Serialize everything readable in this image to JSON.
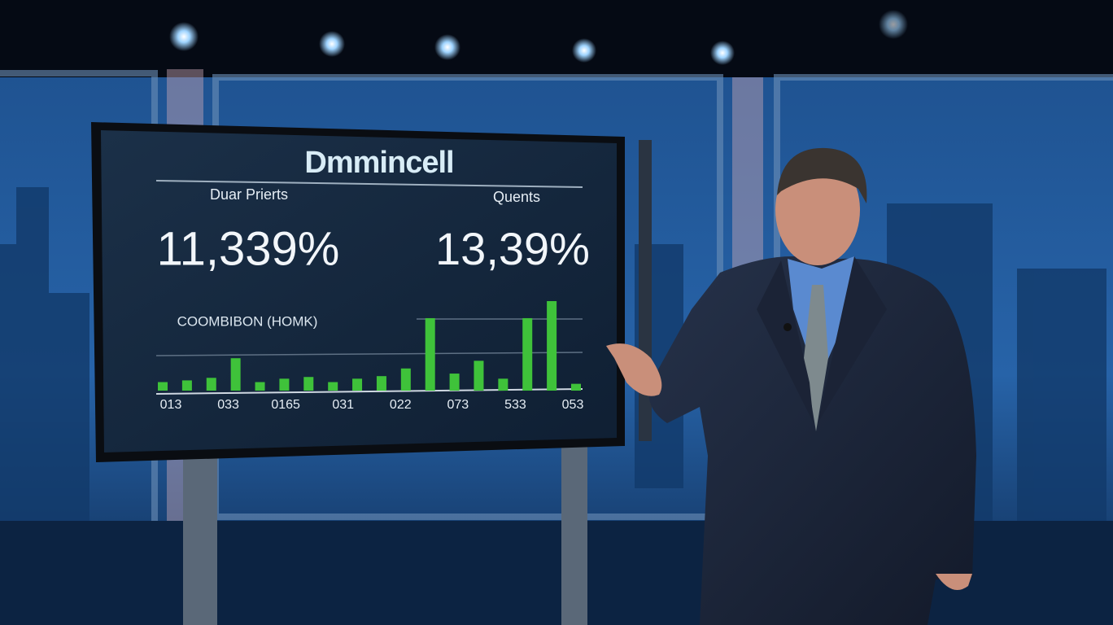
{
  "screen": {
    "title": "Dmmincell",
    "left_label": "Duar Prierts",
    "right_label": "Quents",
    "left_value": "11,339%",
    "right_value": "13,39%",
    "chart": {
      "type": "bar",
      "title": "COOMBIBON (HOMK)",
      "color": "#3fc23a",
      "values": [
        10,
        12,
        15,
        38,
        10,
        14,
        16,
        10,
        14,
        17,
        26,
        85,
        20,
        35,
        14,
        85,
        105,
        8
      ],
      "x_labels": [
        "013",
        "033",
        "0165",
        "031",
        "022",
        "073",
        "533",
        "053"
      ]
    }
  }
}
